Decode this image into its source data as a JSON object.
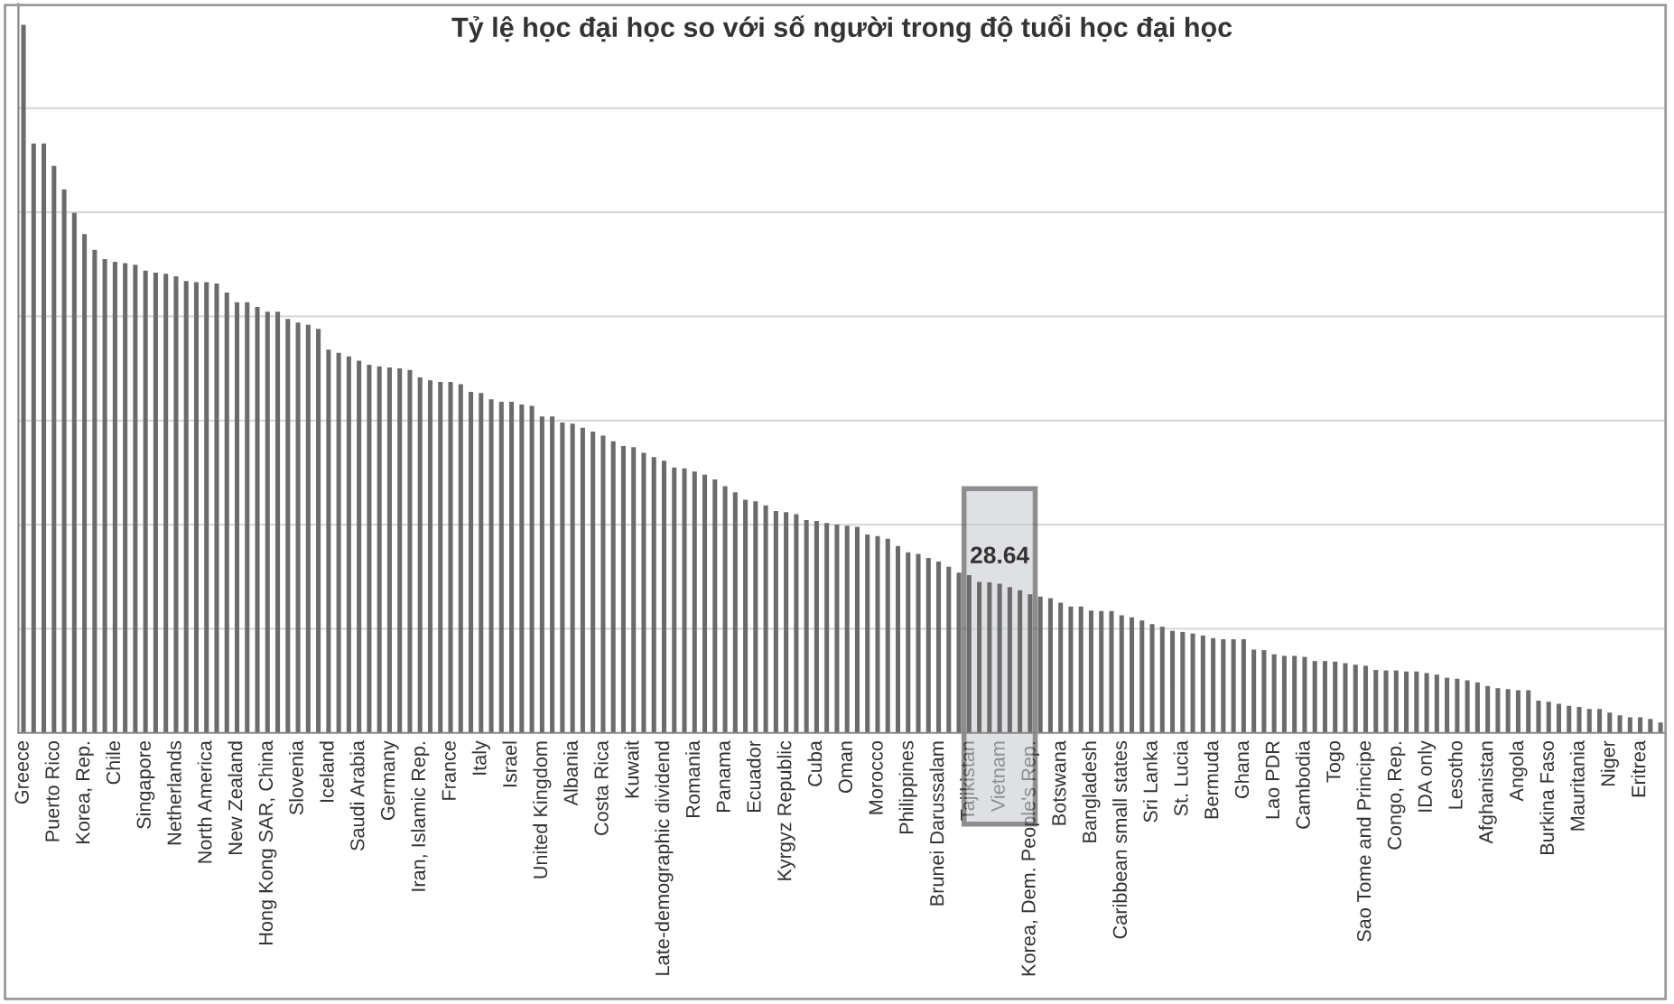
{
  "chart_data": {
    "type": "bar",
    "title": "Tỷ lệ học đại học so với số người trong độ tuổi học đại học",
    "categories": [
      "Greece",
      null,
      null,
      "Puerto Rico",
      null,
      null,
      "Korea, Rep.",
      null,
      null,
      "Chile",
      null,
      null,
      "Singapore",
      null,
      null,
      "Netherlands",
      null,
      null,
      "North America",
      null,
      null,
      "New Zealand",
      null,
      null,
      "Hong Kong SAR, China",
      null,
      null,
      "Slovenia",
      null,
      null,
      "Iceland",
      null,
      null,
      "Saudi Arabia",
      null,
      null,
      "Germany",
      null,
      null,
      "Iran, Islamic Rep.",
      null,
      null,
      "France",
      null,
      null,
      "Italy",
      null,
      null,
      "Israel",
      null,
      null,
      "United Kingdom",
      null,
      null,
      "Albania",
      null,
      null,
      "Costa Rica",
      null,
      null,
      "Kuwait",
      null,
      null,
      "Late-demographic dividend",
      null,
      null,
      "Romania",
      null,
      null,
      "Panama",
      null,
      null,
      "Ecuador",
      null,
      null,
      "Kyrgyz Republic",
      null,
      null,
      "Cuba",
      null,
      null,
      "Oman",
      null,
      null,
      "Morocco",
      null,
      null,
      "Philippines",
      null,
      null,
      "Brunei Darussalam",
      null,
      null,
      "Tajikistan",
      null,
      null,
      "Vietnam",
      null,
      null,
      "Korea, Dem. People's Rep.",
      null,
      null,
      "Botswana",
      null,
      null,
      "Bangladesh",
      null,
      null,
      "Caribbean small states",
      null,
      null,
      "Sri Lanka",
      null,
      null,
      "St. Lucia",
      null,
      null,
      "Bermuda",
      null,
      null,
      "Ghana",
      null,
      null,
      "Lao PDR",
      null,
      null,
      "Cambodia",
      null,
      null,
      "Togo",
      null,
      null,
      "Sao Tome and Principe",
      null,
      null,
      "Congo, Rep.",
      null,
      null,
      "IDA only",
      null,
      null,
      "Lesotho",
      null,
      null,
      "Afghanistan",
      null,
      null,
      "Angola",
      null,
      null,
      "Burkina Faso",
      null,
      null,
      "Mauritania",
      null,
      null,
      "Niger",
      null,
      null,
      "Eritrea",
      null,
      null
    ],
    "values": [
      136,
      113.2,
      113.2,
      108.9,
      104.4,
      99.9,
      95.8,
      92.8,
      91.0,
      90.5,
      90.2,
      89.9,
      88.8,
      88.4,
      88.2,
      87.7,
      86.8,
      86.6,
      86.6,
      86.3,
      84.6,
      82.7,
      82.7,
      81.8,
      80.9,
      80.9,
      79.5,
      78.8,
      78.4,
      77.6,
      73.6,
      73.0,
      72.3,
      71.5,
      70.7,
      70.4,
      70.2,
      70.0,
      69.7,
      68.3,
      67.7,
      67.4,
      67.4,
      67.0,
      65.5,
      65.3,
      64.1,
      63.6,
      63.6,
      63.1,
      62.8,
      60.8,
      60.8,
      59.6,
      59.4,
      58.6,
      57.9,
      57.1,
      56.0,
      55.1,
      54.9,
      53.8,
      53.0,
      52.3,
      51.0,
      50.8,
      50.2,
      49.6,
      48.7,
      47.4,
      46.2,
      44.8,
      44.5,
      43.7,
      42.6,
      42.4,
      42.0,
      40.9,
      40.7,
      40.3,
      40.0,
      39.8,
      39.6,
      38.1,
      37.8,
      37.3,
      35.9,
      34.7,
      34.4,
      33.6,
      32.9,
      31.9,
      30.8,
      30.3,
      29.0,
      28.9,
      28.64,
      28.0,
      27.4,
      26.6,
      26.2,
      25.9,
      25.0,
      24.3,
      24.3,
      23.5,
      23.4,
      23.4,
      22.6,
      22.2,
      21.6,
      20.9,
      20.4,
      19.6,
      19.4,
      19.1,
      18.7,
      18.2,
      18.0,
      18.0,
      18.0,
      16.0,
      15.9,
      15.1,
      14.8,
      14.8,
      14.6,
      13.8,
      13.8,
      13.7,
      13.4,
      13.1,
      12.9,
      12.1,
      12.0,
      12.0,
      11.8,
      11.8,
      11.5,
      11.2,
      10.6,
      10.4,
      10.1,
      9.7,
      9.0,
      8.6,
      8.4,
      8.2,
      8.2,
      6.2,
      6.0,
      5.6,
      5.2,
      5.0,
      4.6,
      4.6,
      3.9,
      3.4,
      3.0,
      3.0,
      2.7,
      2.0
    ],
    "value_labels": [
      null,
      null,
      null,
      null,
      null,
      null,
      null,
      null,
      null,
      null,
      null,
      null,
      null,
      null,
      null,
      null,
      null,
      null,
      null,
      null,
      null,
      null,
      null,
      null,
      null,
      null,
      null,
      null,
      null,
      null,
      null,
      null,
      null,
      null,
      null,
      null,
      null,
      null,
      null,
      null,
      null,
      null,
      null,
      null,
      null,
      null,
      null,
      null,
      null,
      null,
      null,
      null,
      null,
      null,
      null,
      null,
      null,
      null,
      null,
      null,
      null,
      null,
      null,
      null,
      null,
      null,
      null,
      null,
      null,
      null,
      null,
      null,
      null,
      null,
      null,
      null,
      null,
      null,
      null,
      null,
      null,
      null,
      null,
      null,
      null,
      null,
      null,
      null,
      null,
      null,
      null,
      null,
      null,
      null,
      null,
      null,
      "28.64",
      null,
      null,
      null,
      null,
      null,
      null,
      null,
      null,
      null,
      null,
      null,
      null,
      null,
      null,
      null,
      null,
      null,
      null,
      null,
      null,
      null,
      null,
      null,
      null,
      null,
      null,
      null,
      null,
      null,
      null,
      null,
      null,
      null,
      null,
      null,
      null,
      null,
      null,
      null,
      null,
      null,
      null,
      null,
      null,
      null,
      null,
      null,
      null,
      null,
      null,
      null,
      null,
      null,
      null,
      null,
      null,
      null,
      null,
      null,
      null,
      null,
      null,
      null,
      null,
      null
    ],
    "color": "#6b6b6b",
    "ylim": [
      0,
      140
    ],
    "yticks": [
      {
        "value": 0,
        "label": null
      },
      {
        "value": 20,
        "label": null
      },
      {
        "value": 40,
        "label": null
      },
      {
        "value": 60,
        "label": null
      },
      {
        "value": 80,
        "label": null
      },
      {
        "value": 100,
        "label": null
      },
      {
        "value": 120,
        "label": null
      },
      {
        "value": 140,
        "label": null
      }
    ],
    "tick_labels": "x",
    "grid": "y",
    "bands": [
      {
        "axis": "x",
        "from": "Tajikistan",
        "to": "Korea, Dem. People's Rep.",
        "label": null,
        "color": "#c9cdd1"
      }
    ]
  }
}
